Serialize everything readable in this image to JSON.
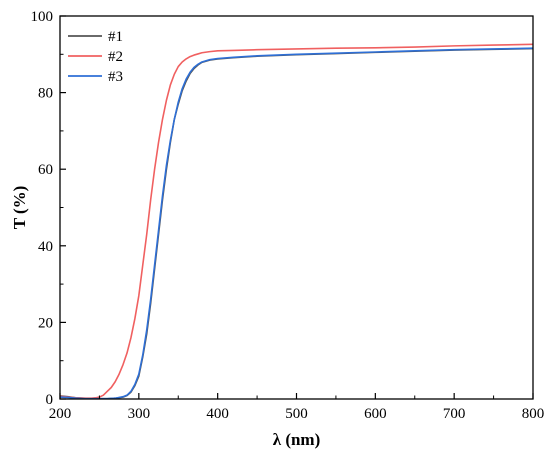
{
  "chart_data": {
    "type": "line",
    "title": "",
    "xlabel": "λ (nm)",
    "ylabel": "T (%)",
    "xlim": [
      200,
      800
    ],
    "ylim": [
      0,
      100
    ],
    "x_ticks": [
      "200",
      "300",
      "400",
      "500",
      "600",
      "700",
      "800"
    ],
    "y_ticks": [
      "0",
      "20",
      "40",
      "60",
      "80",
      "100"
    ],
    "grid": false,
    "legend_position": "top-left",
    "series": [
      {
        "name": "#1",
        "color": "#555555",
        "x": [
          200,
          210,
          220,
          230,
          240,
          250,
          260,
          270,
          280,
          285,
          290,
          295,
          300,
          305,
          310,
          315,
          320,
          325,
          330,
          335,
          340,
          345,
          350,
          355,
          360,
          365,
          370,
          375,
          380,
          390,
          400,
          420,
          450,
          500,
          550,
          600,
          650,
          700,
          750,
          800
        ],
        "y": [
          0.8,
          0.6,
          0.3,
          0.2,
          0.1,
          0.1,
          0.1,
          0.2,
          0.5,
          0.9,
          1.8,
          3.5,
          6,
          11,
          17,
          25,
          34,
          43,
          52,
          60,
          67,
          73,
          77,
          80.5,
          83,
          85,
          86.3,
          87.2,
          87.9,
          88.5,
          88.8,
          89.1,
          89.5,
          89.9,
          90.2,
          90.5,
          90.8,
          91.1,
          91.3,
          91.5
        ]
      },
      {
        "name": "#2",
        "color": "#f06060",
        "x": [
          200,
          210,
          220,
          230,
          240,
          245,
          250,
          255,
          260,
          265,
          270,
          275,
          280,
          285,
          290,
          295,
          300,
          305,
          310,
          315,
          320,
          325,
          330,
          335,
          340,
          345,
          350,
          355,
          360,
          365,
          370,
          375,
          380,
          390,
          400,
          420,
          450,
          500,
          550,
          600,
          650,
          700,
          750,
          800
        ],
        "y": [
          0.7,
          0.5,
          0.3,
          0.2,
          0.2,
          0.3,
          0.5,
          1,
          2,
          3,
          4.5,
          6.5,
          9,
          12,
          16,
          21,
          27,
          35,
          43,
          52,
          60,
          67,
          73,
          78,
          82,
          84.8,
          86.8,
          88,
          88.8,
          89.4,
          89.8,
          90.1,
          90.4,
          90.7,
          90.9,
          91,
          91.2,
          91.4,
          91.6,
          91.7,
          91.9,
          92.2,
          92.4,
          92.6
        ]
      },
      {
        "name": "#3",
        "color": "#2e6fd6",
        "x": [
          200,
          210,
          220,
          230,
          240,
          250,
          260,
          270,
          280,
          285,
          290,
          295,
          300,
          305,
          310,
          315,
          320,
          325,
          330,
          335,
          340,
          345,
          350,
          355,
          360,
          365,
          370,
          375,
          380,
          390,
          400,
          420,
          450,
          500,
          550,
          600,
          650,
          700,
          750,
          800
        ],
        "y": [
          0.5,
          0.4,
          0.2,
          0.1,
          0.1,
          0.1,
          0.1,
          0.2,
          0.6,
          1,
          2,
          3.8,
          6.5,
          11.5,
          18,
          26,
          35,
          44,
          53,
          61,
          67.5,
          73,
          77.5,
          81,
          83.5,
          85.3,
          86.6,
          87.4,
          88,
          88.6,
          88.9,
          89.2,
          89.6,
          90,
          90.3,
          90.6,
          90.9,
          91.2,
          91.4,
          91.6
        ]
      }
    ]
  }
}
